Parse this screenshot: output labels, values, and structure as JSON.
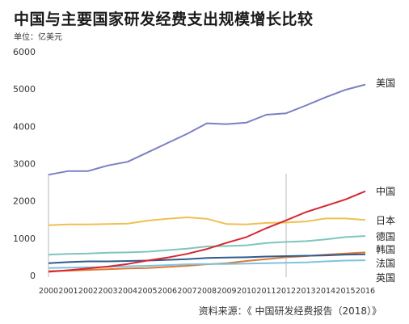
{
  "chart_data": {
    "type": "line",
    "title": "中国与主要国家研发经费支出规模增长比较",
    "subtitle": "单位：亿美元",
    "source": "资料来源：《 中国研发经费报告（2018）》",
    "x": [
      "2000",
      "2001",
      "2002",
      "2003",
      "2004",
      "2005",
      "2006",
      "2007",
      "2008",
      "2009",
      "2010",
      "2011",
      "2012",
      "2013",
      "2014",
      "2015",
      "2016"
    ],
    "ylim": [
      0,
      6000
    ],
    "yticks": [
      "6000",
      "5000",
      "4000",
      "3000",
      "2000",
      "1000",
      "0"
    ],
    "grid": false,
    "legend": "right-end labels",
    "series": [
      {
        "name": "美国",
        "color": "#7b80c4",
        "values": [
          2700,
          2800,
          2800,
          2950,
          3050,
          3300,
          3550,
          3800,
          4080,
          4060,
          4100,
          4310,
          4350,
          4560,
          4780,
          4980,
          5120
        ]
      },
      {
        "name": "中国",
        "color": "#d9262c",
        "values": [
          100,
          140,
          190,
          240,
          310,
          400,
          480,
          580,
          710,
          880,
          1030,
          1270,
          1480,
          1700,
          1870,
          2040,
          2260
        ]
      },
      {
        "name": "日本",
        "color": "#f0c050",
        "values": [
          1350,
          1370,
          1370,
          1380,
          1390,
          1470,
          1520,
          1560,
          1520,
          1380,
          1370,
          1410,
          1420,
          1450,
          1530,
          1530,
          1490
        ]
      },
      {
        "name": "德国",
        "color": "#7dc6bd",
        "values": [
          560,
          580,
          590,
          610,
          620,
          640,
          680,
          720,
          780,
          790,
          810,
          870,
          900,
          920,
          970,
          1030,
          1060
        ]
      },
      {
        "name": "韩国",
        "color": "#e07a35",
        "values": [
          120,
          130,
          150,
          170,
          190,
          200,
          230,
          260,
          300,
          330,
          390,
          440,
          490,
          520,
          560,
          590,
          620
        ]
      },
      {
        "name": "法国",
        "color": "#2e5d8e",
        "values": [
          330,
          360,
          380,
          380,
          390,
          400,
          420,
          440,
          470,
          480,
          490,
          510,
          520,
          530,
          540,
          560,
          570
        ]
      },
      {
        "name": "英国",
        "color": "#7ec3e0",
        "values": [
          200,
          210,
          220,
          230,
          250,
          260,
          280,
          300,
          310,
          310,
          320,
          330,
          340,
          350,
          380,
          400,
          410
        ]
      }
    ]
  }
}
